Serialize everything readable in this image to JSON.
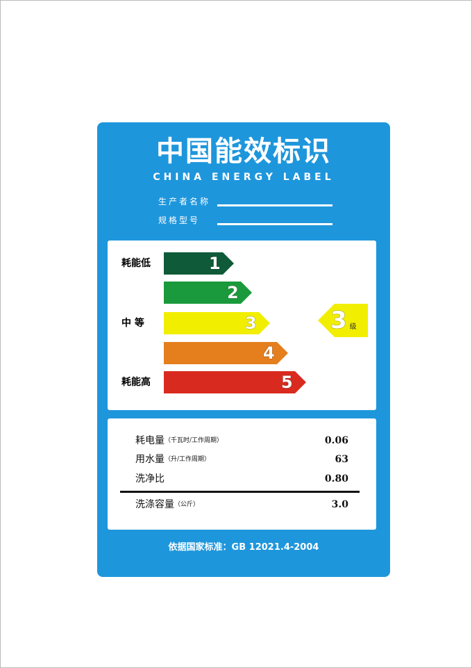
{
  "header": {
    "title": "中国能效标识",
    "subtitle": "CHINA ENERGY LABEL"
  },
  "fields": [
    {
      "label": "生产者名称"
    },
    {
      "label": "规格型号"
    }
  ],
  "scale": {
    "labels": {
      "low": "耗能低",
      "mid": "中 等",
      "high": "耗能高"
    },
    "grades": [
      {
        "num": "1",
        "color": "#0f5a38"
      },
      {
        "num": "2",
        "color": "#1a9a3c"
      },
      {
        "num": "3",
        "color": "#f2ee00"
      },
      {
        "num": "4",
        "color": "#e57e1c"
      },
      {
        "num": "5",
        "color": "#d92a1f"
      }
    ],
    "current": {
      "grade": "3",
      "suffix": "级",
      "color": "#f2ee00"
    }
  },
  "specs": [
    {
      "name": "耗电量",
      "unit": "（千瓦时/工作周期）",
      "value": "0.06"
    },
    {
      "name": "用水量",
      "unit": "（升/工作周期）",
      "value": "63"
    },
    {
      "name": "洗净比",
      "unit": "",
      "value": "0.80"
    },
    {
      "name": "洗涤容量",
      "unit": "（公斤）",
      "value": "3.0"
    }
  ],
  "footer": {
    "standard": "依据国家标准：GB 12021.4-2004"
  },
  "colors": {
    "brand_blue": "#1e96dc"
  }
}
